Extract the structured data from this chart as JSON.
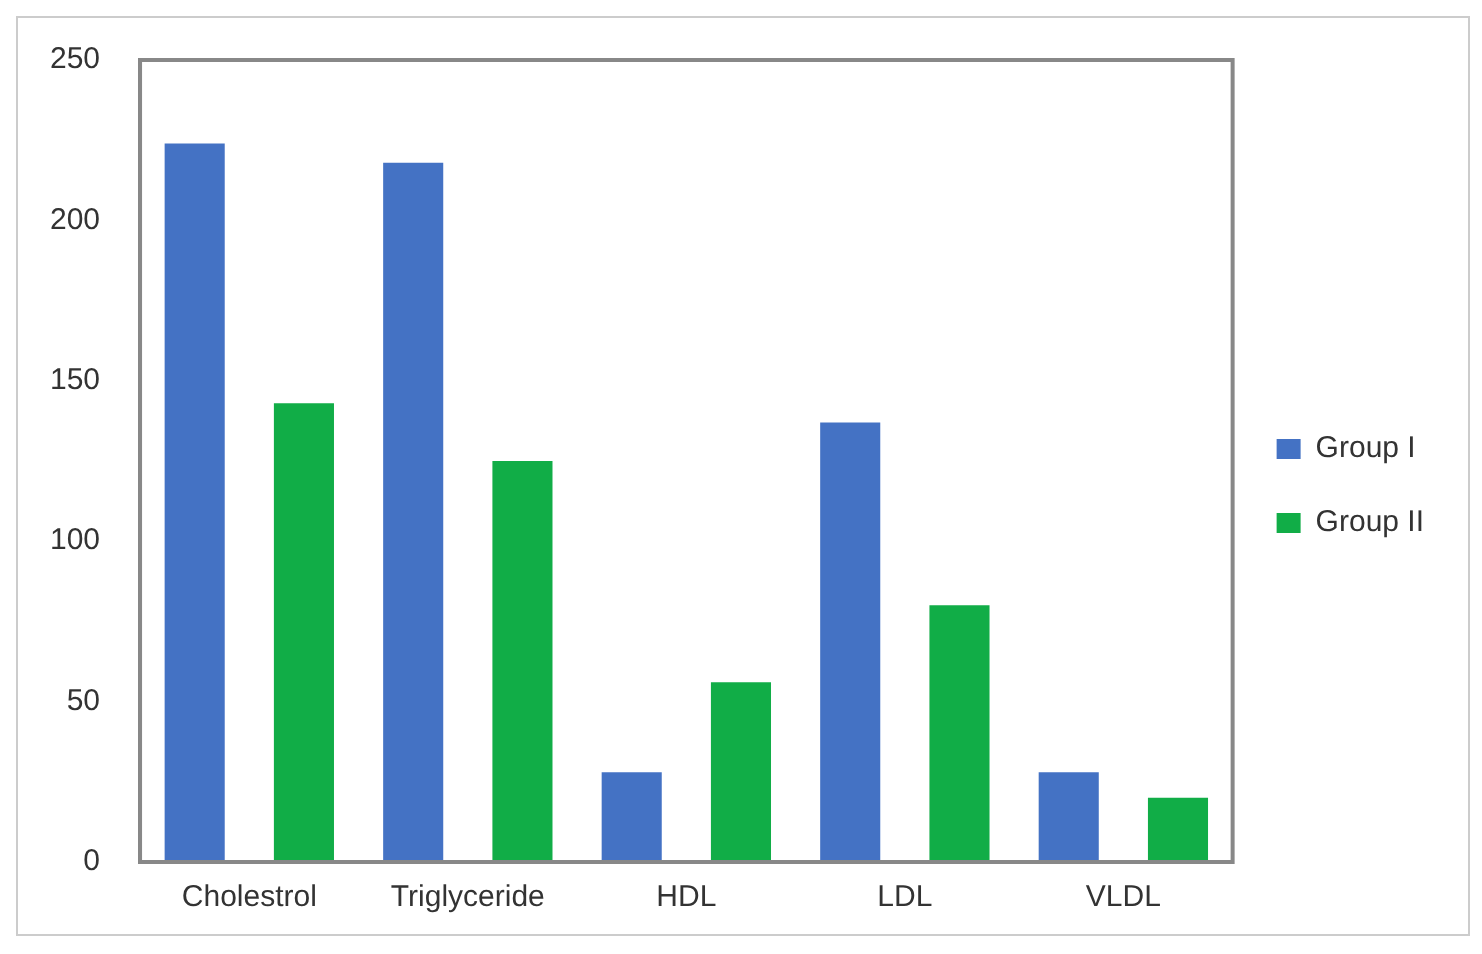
{
  "chart_data": {
    "type": "bar",
    "categories": [
      "Cholestrol",
      "Triglyceride",
      "HDL",
      "LDL",
      "VLDL"
    ],
    "series": [
      {
        "name": "Group I",
        "color": "#4472c4",
        "values": [
          224,
          218,
          28,
          137,
          28
        ]
      },
      {
        "name": "Group II",
        "color": "#11ad47",
        "values": [
          143,
          125,
          56,
          80,
          20
        ]
      }
    ],
    "ylim": [
      0,
      250
    ],
    "yticks": [
      0,
      50,
      100,
      150,
      200,
      250
    ],
    "grid": false,
    "legend": "right"
  }
}
